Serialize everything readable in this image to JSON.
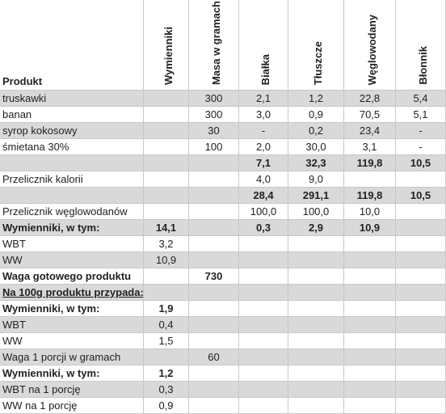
{
  "table": {
    "headers": [
      "Produkt",
      "Wymienniki",
      "Masa w gramach",
      "Białka",
      "Tłuszcze",
      "Węglowodany",
      "Błonnik"
    ],
    "rows": [
      [
        "truskawki",
        null,
        "300",
        "2,1",
        "1,2",
        "22,8",
        "5,4"
      ],
      [
        "banan",
        null,
        "300",
        "3,0",
        "0,9",
        "70,5",
        "5,1"
      ],
      [
        "syrop kokosowy",
        null,
        "30",
        "-",
        "0,2",
        "23,4",
        "-"
      ],
      [
        "śmietana 30%",
        null,
        "100",
        "2,0",
        "30,0",
        "3,1",
        "-"
      ],
      [
        null,
        null,
        null,
        "7,1",
        "32,3",
        "119,8",
        "10,5"
      ],
      [
        "Przelicznik kalorii",
        null,
        null,
        "4,0",
        "9,0",
        null,
        null
      ],
      [
        null,
        null,
        null,
        "28,4",
        "291,1",
        "119,8",
        "10,5"
      ],
      [
        "Przelicznik węglowodanów",
        null,
        null,
        "100,0",
        "100,0",
        "10,0",
        null
      ],
      [
        "Wymienniki, w tym:",
        "14,1",
        null,
        "0,3",
        "2,9",
        "10,9",
        null
      ],
      [
        "WBT",
        "3,2",
        null,
        null,
        null,
        null,
        null
      ],
      [
        "WW",
        "10,9",
        null,
        null,
        null,
        null,
        null
      ],
      [
        "Waga gotowego produktu",
        null,
        "730",
        null,
        null,
        null,
        null
      ],
      [
        "Na 100g produktu przypada:",
        null,
        null,
        null,
        null,
        null,
        null
      ],
      [
        "Wymienniki, w tym:",
        "1,9",
        null,
        null,
        null,
        null,
        null
      ],
      [
        "WBT",
        "0,4",
        null,
        null,
        null,
        null,
        null
      ],
      [
        "WW",
        "1,5",
        null,
        null,
        null,
        null,
        null
      ],
      [
        "Waga 1 porcji w gramach",
        null,
        "60",
        null,
        null,
        null,
        null
      ],
      [
        "Wymienniki, w tym:",
        "1,2",
        null,
        null,
        null,
        null,
        null
      ],
      [
        "WBT na 1 porcję",
        "0,3",
        null,
        null,
        null,
        null,
        null
      ],
      [
        "WW na 1 porcję",
        "0,9",
        null,
        null,
        null,
        null,
        null
      ]
    ]
  }
}
